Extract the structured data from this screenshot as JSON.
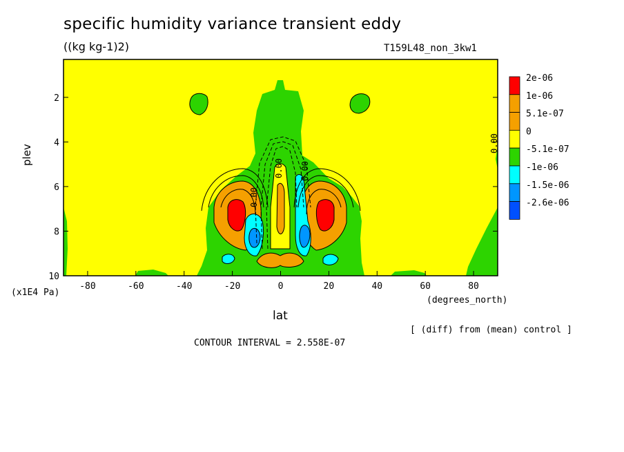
{
  "header": {
    "title": "specific humidity variance transient eddy",
    "units": "((kg kg-1)2)",
    "run": "T159L48_non_3kw1"
  },
  "footer": {
    "y_unit": "(x1E4 Pa)",
    "x_unit": "(degrees_north)",
    "diff_note": "[ (diff) from (mean) control ]",
    "contour_interval": "CONTOUR INTERVAL = 2.558E-07"
  },
  "chart_data": {
    "type": "heatmap",
    "title": "specific humidity variance transient eddy",
    "xlabel": "lat",
    "ylabel": "plev",
    "xlim": [
      -90,
      90
    ],
    "ylim": [
      10,
      0.3
    ],
    "x_ticks": [
      -80,
      -60,
      -40,
      -20,
      0,
      20,
      40,
      60,
      80
    ],
    "y_ticks": [
      2,
      4,
      6,
      8,
      10
    ],
    "contour_labels": [
      "0.00",
      "0.00",
      "0.00",
      "0.00"
    ],
    "legend": {
      "position": "right",
      "levels": [
        {
          "label": "2e-06",
          "color": "#ff0000"
        },
        {
          "label": "1e-06",
          "color": "#f5a000"
        },
        {
          "label": "5.1e-07",
          "color": "#f5a000"
        },
        {
          "label": "0",
          "color": "#ffff00"
        },
        {
          "label": "-5.1e-07",
          "color": "#2dd400"
        },
        {
          "label": "-1e-06",
          "color": "#00ffff"
        },
        {
          "label": "-1.5e-06",
          "color": "#0096ff"
        },
        {
          "label": "-2.6e-06",
          "color": "#0050ff"
        }
      ]
    },
    "regions": [
      {
        "name": "yellow-background",
        "value_class": "0",
        "color": "#ffff00"
      },
      {
        "name": "green-central-plume",
        "value_class": "-5.1e-07",
        "color": "#2dd400"
      },
      {
        "name": "orange-lobe-south",
        "value_class": "1e-06",
        "color": "#f5a000"
      },
      {
        "name": "orange-lobe-north",
        "value_class": "1e-06",
        "color": "#f5a000"
      },
      {
        "name": "red-core-south",
        "value_class": "2e-06",
        "color": "#ff0000"
      },
      {
        "name": "red-core-north",
        "value_class": "2e-06",
        "color": "#ff0000"
      },
      {
        "name": "cyan-pocket-south",
        "value_class": "-1e-06",
        "color": "#00ffff"
      },
      {
        "name": "cyan-pocket-north",
        "value_class": "-1e-06",
        "color": "#00ffff"
      },
      {
        "name": "blue-core-south",
        "value_class": "-1.5e-06",
        "color": "#0096ff"
      },
      {
        "name": "blue-core-north",
        "value_class": "-1.5e-06",
        "color": "#0096ff"
      }
    ]
  }
}
